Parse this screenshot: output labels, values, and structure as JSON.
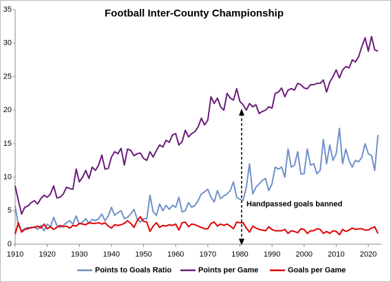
{
  "chart_data": {
    "type": "line",
    "title": "Football Inter-County Championship",
    "annotations": [
      {
        "text": "Handpassed goals banned"
      }
    ],
    "x": [
      1910,
      1911,
      1912,
      1913,
      1914,
      1915,
      1916,
      1917,
      1918,
      1919,
      1920,
      1921,
      1922,
      1923,
      1924,
      1925,
      1926,
      1927,
      1928,
      1929,
      1930,
      1931,
      1932,
      1933,
      1934,
      1935,
      1936,
      1937,
      1938,
      1939,
      1940,
      1941,
      1942,
      1943,
      1944,
      1945,
      1946,
      1947,
      1948,
      1949,
      1950,
      1951,
      1952,
      1953,
      1954,
      1955,
      1956,
      1957,
      1958,
      1959,
      1960,
      1961,
      1962,
      1963,
      1964,
      1965,
      1966,
      1967,
      1968,
      1969,
      1970,
      1971,
      1972,
      1973,
      1974,
      1975,
      1976,
      1977,
      1978,
      1979,
      1980,
      1981,
      1982,
      1983,
      1984,
      1985,
      1986,
      1987,
      1988,
      1989,
      1990,
      1991,
      1992,
      1993,
      1994,
      1995,
      1996,
      1997,
      1998,
      1999,
      2000,
      2001,
      2002,
      2003,
      2004,
      2005,
      2006,
      2007,
      2008,
      2009,
      2010,
      2011,
      2012,
      2013,
      2014,
      2015,
      2016,
      2017,
      2018,
      2019,
      2020,
      2021,
      2022,
      2023
    ],
    "series": [
      {
        "name": "Points to Goals Ratio",
        "color": "#7090c8",
        "values": [
          5.7,
          2.8,
          2.0,
          2.3,
          2.5,
          2.4,
          2.6,
          2.2,
          2.8,
          2.0,
          3.0,
          2.6,
          4.0,
          2.8,
          2.5,
          2.8,
          3.2,
          3.5,
          3.0,
          4.2,
          3.0,
          3.3,
          3.8,
          3.1,
          3.7,
          3.5,
          3.8,
          4.5,
          3.5,
          4.2,
          5.5,
          4.3,
          4.7,
          5.0,
          3.8,
          4.0,
          4.5,
          5.2,
          3.8,
          3.3,
          3.8,
          3.8,
          7.3,
          4.8,
          4.3,
          6.0,
          5.0,
          5.8,
          5.2,
          5.8,
          5.5,
          7.0,
          4.8,
          5.0,
          6.2,
          5.5,
          5.8,
          6.5,
          7.5,
          7.8,
          8.2,
          7.0,
          6.3,
          8.0,
          6.8,
          7.2,
          7.5,
          8.0,
          9.3,
          7.0,
          6.7,
          6.5,
          8.5,
          12.0,
          7.5,
          8.5,
          9.0,
          9.5,
          9.8,
          8.0,
          9.0,
          11.5,
          11.2,
          11.5,
          10.0,
          14.2,
          11.5,
          11.8,
          13.8,
          10.5,
          10.5,
          14.2,
          11.8,
          12.0,
          10.5,
          11.0,
          15.6,
          12.0,
          14.8,
          12.5,
          13.5,
          17.3,
          12.0,
          14.2,
          12.5,
          11.5,
          12.5,
          12.3,
          13.0,
          15.0,
          13.5,
          13.2,
          11.0,
          16.3
        ]
      },
      {
        "name": "Points per Game",
        "color": "#6a1b7a",
        "values": [
          8.7,
          6.5,
          4.5,
          5.5,
          5.7,
          6.2,
          6.5,
          6.0,
          6.8,
          7.3,
          7.0,
          7.5,
          8.7,
          6.9,
          7.0,
          7.5,
          8.5,
          8.3,
          8.2,
          11.2,
          9.3,
          10.0,
          11.0,
          9.8,
          11.5,
          11.0,
          11.8,
          13.3,
          11.2,
          11.3,
          13.0,
          13.8,
          13.5,
          14.3,
          11.8,
          14.2,
          14.0,
          13.2,
          13.5,
          13.6,
          12.8,
          12.5,
          13.8,
          13.0,
          14.0,
          14.8,
          14.5,
          15.5,
          15.2,
          16.3,
          16.5,
          14.8,
          15.3,
          17.0,
          16.0,
          16.5,
          16.8,
          17.5,
          18.8,
          17.8,
          18.5,
          22.0,
          21.0,
          21.8,
          20.5,
          20.0,
          22.5,
          21.8,
          21.5,
          23.2,
          21.3,
          20.8,
          20.0,
          21.0,
          20.5,
          20.8,
          19.5,
          19.8,
          20.0,
          20.5,
          20.3,
          22.5,
          22.7,
          23.3,
          22.0,
          23.0,
          23.2,
          23.0,
          24.0,
          23.8,
          23.3,
          23.2,
          23.8,
          23.8,
          24.0,
          24.0,
          24.5,
          22.7,
          24.2,
          25.0,
          26.0,
          24.8,
          26.0,
          26.5,
          26.3,
          27.5,
          27.2,
          28.0,
          29.5,
          30.8,
          28.8,
          31.0,
          29.0,
          28.8
        ]
      },
      {
        "name": "Goals per Game",
        "color": "#e00000",
        "values": [
          1.5,
          3.2,
          1.8,
          2.2,
          2.3,
          2.5,
          2.5,
          2.7,
          2.4,
          3.0,
          2.3,
          2.6,
          2.2,
          2.5,
          2.8,
          2.6,
          2.7,
          2.4,
          2.8,
          2.7,
          3.1,
          3.0,
          2.9,
          3.2,
          3.1,
          3.1,
          3.2,
          3.0,
          3.2,
          2.7,
          2.4,
          2.9,
          2.8,
          2.9,
          3.1,
          3.5,
          3.1,
          2.5,
          3.5,
          4.1,
          3.4,
          3.3,
          1.9,
          2.7,
          3.2,
          2.5,
          2.8,
          2.7,
          2.9,
          2.8,
          3.0,
          2.1,
          3.2,
          3.3,
          2.6,
          3.0,
          2.9,
          2.7,
          2.5,
          2.3,
          2.3,
          3.1,
          3.3,
          2.7,
          3.0,
          2.8,
          3.0,
          2.7,
          2.3,
          3.3,
          3.2,
          3.2,
          2.4,
          1.8,
          2.7,
          2.4,
          2.2,
          2.1,
          2.0,
          2.6,
          2.2,
          2.0,
          2.0,
          2.0,
          2.2,
          1.6,
          2.0,
          1.9,
          1.7,
          2.3,
          2.2,
          1.6,
          2.0,
          2.0,
          2.3,
          2.2,
          1.6,
          1.9,
          1.6,
          2.0,
          1.9,
          1.4,
          2.2,
          1.9,
          2.1,
          2.4,
          2.2,
          2.3,
          2.3,
          2.1,
          2.1,
          2.4,
          2.6,
          1.6
        ]
      }
    ],
    "xlim": [
      1910,
      2024
    ],
    "xticks": [
      1910,
      1920,
      1930,
      1940,
      1950,
      1960,
      1970,
      1980,
      1990,
      2000,
      2010,
      2020
    ],
    "ylim": [
      0,
      35
    ],
    "yticks": [
      0,
      5,
      10,
      15,
      20,
      25,
      30,
      35
    ],
    "grid": false,
    "legend": "bottom"
  }
}
